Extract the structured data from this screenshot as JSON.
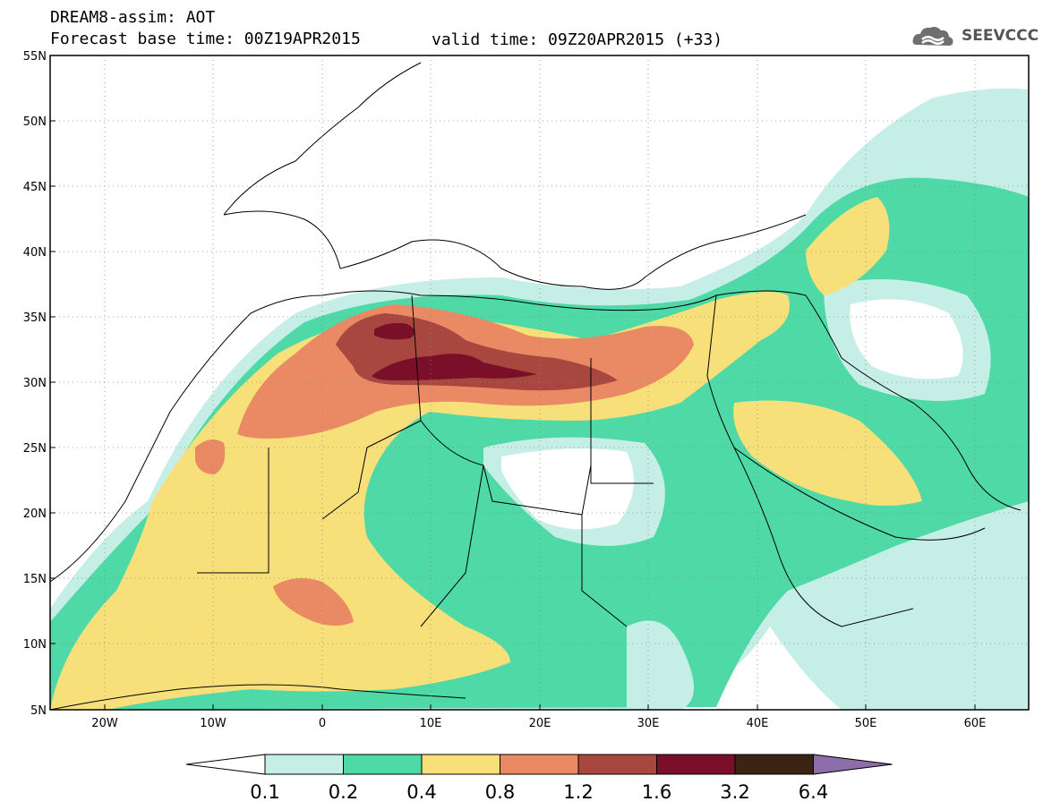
{
  "header": {
    "title": "DREAM8-assim: AOT",
    "base_time": "Forecast base time: 00Z19APR2015",
    "valid_time": "valid time: 09Z20APR2015 (+33)",
    "logo_text": "SEEVCCC"
  },
  "map": {
    "lon_range": [
      -25,
      65
    ],
    "lat_range": [
      5,
      55
    ],
    "lat_ticks": [
      "55N",
      "50N",
      "45N",
      "40N",
      "35N",
      "30N",
      "25N",
      "20N",
      "15N",
      "10N",
      "5N"
    ],
    "lon_ticks": [
      "20W",
      "10W",
      "0",
      "10E",
      "20E",
      "30E",
      "40E",
      "50E",
      "60E"
    ],
    "field": "AOT",
    "grid": true
  },
  "colorbar": {
    "levels": [
      "0.1",
      "0.2",
      "0.4",
      "0.8",
      "1.2",
      "1.6",
      "3.2",
      "6.4"
    ],
    "colors": [
      "#ffffff",
      "#c5eee6",
      "#4ed9a6",
      "#f7e07a",
      "#e98a65",
      "#a8473f",
      "#7a0f2a",
      "#3b2414",
      "#8e6ea8"
    ]
  }
}
